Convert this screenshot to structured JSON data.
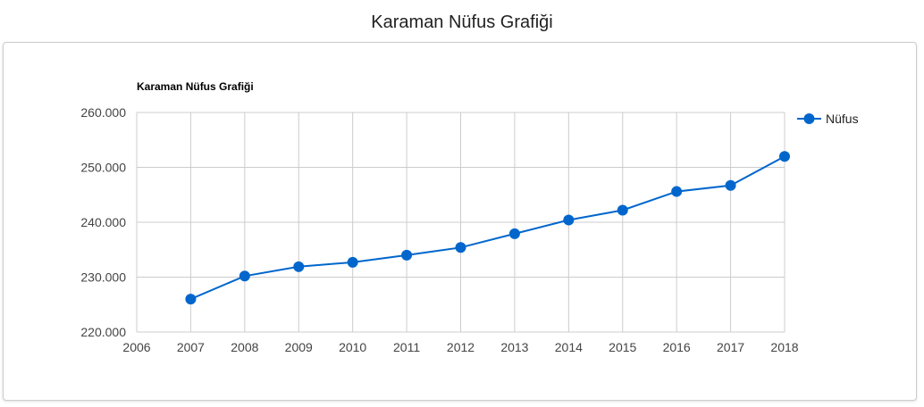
{
  "header": {
    "title": "Karaman Nüfus Grafiği"
  },
  "colors": {
    "series": "#0066cc",
    "grid": "#cccccc",
    "axis_text": "#444444",
    "title_text": "#000000"
  },
  "chart_data": {
    "type": "line",
    "title": "Karaman Nüfus Grafiği",
    "xlabel": "",
    "ylabel": "",
    "xlim": [
      2006,
      2018
    ],
    "ylim": [
      220000,
      260000
    ],
    "x_ticks": [
      "2006",
      "2007",
      "2008",
      "2009",
      "2010",
      "2011",
      "2012",
      "2013",
      "2014",
      "2015",
      "2016",
      "2017",
      "2018"
    ],
    "y_ticks": [
      "220.000",
      "230.000",
      "240.000",
      "250.000",
      "260.000"
    ],
    "grid": true,
    "legend_position": "right",
    "series": [
      {
        "name": "Nüfus",
        "x": [
          2007,
          2008,
          2009,
          2010,
          2011,
          2012,
          2013,
          2014,
          2015,
          2016,
          2017,
          2018
        ],
        "values": [
          226000,
          230200,
          231900,
          232700,
          234000,
          235400,
          237900,
          240400,
          242200,
          245600,
          246700,
          252000
        ]
      }
    ]
  }
}
